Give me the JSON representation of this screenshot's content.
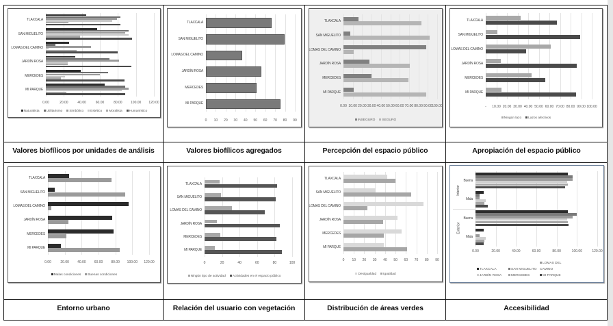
{
  "captions": {
    "c1": "Valores biofílicos por unidades de análisis",
    "c2": "Valores biofílicos agregados",
    "c3": "Percepción del espacio público",
    "c4": "Apropiación del espacio público",
    "c5": "Entorno urbano",
    "c6": "Relación del usuario con vegetación",
    "c7": "Distribución de áreas verdes",
    "c8": "Accesibilidad"
  },
  "chart_data": [
    {
      "id": "valores_biofilicos_unidades",
      "type": "bar",
      "orientation": "horizontal",
      "title": "Valores biofílicos por unidades de análisis",
      "categories": [
        "TLAXCALA",
        "SAN MIGUELITO",
        "LOMAS DEL CAMINO",
        "JARDÍN ROSA",
        "MERCEDES",
        "MI PARQUE"
      ],
      "series": [
        {
          "name": "Naturalista",
          "color": "#2b2b2b",
          "values": [
            45,
            57,
            26,
            33,
            39,
            65
          ]
        },
        {
          "name": "Utilitarismo",
          "color": "#6e6e6e",
          "values": [
            83,
            92,
            11,
            71,
            69,
            88
          ]
        },
        {
          "name": "Simbólico",
          "color": "#9a9a9a",
          "values": [
            79,
            88,
            50,
            81,
            60,
            92
          ]
        },
        {
          "name": "Estético",
          "color": "#c8c8c8",
          "values": [
            74,
            92,
            3,
            24,
            21,
            84
          ]
        },
        {
          "name": "Moralista",
          "color": "#a9a9a9",
          "values": [
            25,
            38,
            34,
            24,
            17,
            23
          ]
        },
        {
          "name": "Humanístico",
          "color": "#4a4a4a",
          "values": [
            83,
            96,
            80,
            95,
            87,
            88
          ]
        }
      ],
      "xticks": [
        "0.00",
        "20.00",
        "40.00",
        "60.00",
        "80.00",
        "100.00",
        "120.00"
      ],
      "xlim": [
        0,
        120
      ],
      "legend_position": "bottom",
      "grid": true
    },
    {
      "id": "valores_biofilicos_agregados",
      "type": "bar",
      "orientation": "horizontal",
      "title": "Valores biofílicos agregados",
      "categories": [
        "TLAXCALA",
        "SAN MIGUELITO",
        "LOMAS DEL CAMINO",
        "JARDÍN ROSA",
        "MERCEDES",
        "MI PARQUE"
      ],
      "series": [
        {
          "name": "Valor",
          "color": "#7a7a7a",
          "values": [
            65,
            78,
            35,
            55,
            50,
            74
          ]
        }
      ],
      "xticks": [
        "0",
        "10",
        "20",
        "30",
        "40",
        "50",
        "60",
        "70",
        "80",
        "90"
      ],
      "xlim": [
        0,
        90
      ],
      "grid": true
    },
    {
      "id": "percepcion_espacio_publico",
      "type": "bar",
      "orientation": "horizontal",
      "title": "Percepción del espacio público",
      "categories": [
        "TLAXCALA",
        "SAN MIGUELITO",
        "LOMAS DEL CAMINO",
        "JARDÍN ROSA",
        "MERCEDES",
        "MI PARQUE"
      ],
      "series": [
        {
          "name": "INSEGURO",
          "color": "#808080",
          "values": [
            16,
            7,
            88,
            28,
            30,
            11
          ]
        },
        {
          "name": "SEGURO",
          "color": "#b5b5b5",
          "values": [
            83,
            92,
            11,
            71,
            69,
            88
          ]
        }
      ],
      "xticks": [
        "0.00",
        "10.00",
        "20.00",
        "30.00",
        "40.00",
        "50.00",
        "60.00",
        "70.00",
        "80.00",
        "90.00",
        "100.00"
      ],
      "xlim": [
        0,
        100
      ],
      "legend_position": "bottom",
      "grid": true
    },
    {
      "id": "apropiacion_espacio_publico",
      "type": "bar",
      "orientation": "horizontal",
      "title": "Apropiación del espacio público",
      "categories": [
        "TLAXCALA",
        "SAN MIGUELITO",
        "LOMAS DEL CAMINO",
        "JARDÍN ROSA",
        "MERCEDES",
        "MI PARQUE"
      ],
      "series": [
        {
          "name": "Ningún lazo",
          "color": "#a8a8a8",
          "values": [
            33,
            11,
            61,
            14,
            43,
            15
          ]
        },
        {
          "name": "Lazos afectivos",
          "color": "#4a4a4a",
          "values": [
            67,
            89,
            38,
            86,
            56,
            85
          ]
        }
      ],
      "xticks": [
        "-",
        "10.00",
        "20.00",
        "30.00",
        "40.00",
        "50.00",
        "60.00",
        "70.00",
        "80.00",
        "90.00",
        "100.00"
      ],
      "xlim": [
        0,
        100
      ],
      "legend_position": "bottom",
      "grid": true
    },
    {
      "id": "entorno_urbano",
      "type": "bar",
      "orientation": "horizontal",
      "title": "Entorno urbano",
      "categories": [
        "TLAXCALA",
        "SAN MIGUELITO",
        "LOMAS DEL CAMINO",
        "JARDÍN ROSA",
        "MERCEDES",
        "MI PARQUE"
      ],
      "series": [
        {
          "name": "Malas condiciones",
          "color": "#2b2b2b",
          "values": [
            25,
            8,
            96,
            76,
            78,
            15
          ]
        },
        {
          "name": "Buenas condiciones",
          "color": "#9a9a9a",
          "values": [
            75,
            92,
            4,
            24,
            22,
            85
          ]
        }
      ],
      "xticks": [
        "0.00",
        "20.00",
        "40.00",
        "60.00",
        "80.00",
        "100.00",
        "120.00"
      ],
      "xlim": [
        0,
        120
      ],
      "legend_position": "bottom",
      "grid": true
    },
    {
      "id": "relacion_usuario_vegetacion",
      "type": "bar",
      "orientation": "horizontal",
      "title": "Relación del usuario con vegetación",
      "categories": [
        "TLAXCALA",
        "SAN MIGUELITO",
        "LOMAS DEL CAMINO",
        "JARDÍN ROSA",
        "MERCEDES",
        "MI PARQUE"
      ],
      "series": [
        {
          "name": "Ningún tipo de actividad",
          "color": "#a8a8a8",
          "values": [
            17,
            19,
            31,
            14,
            18,
            12
          ]
        },
        {
          "name": "Actividades en el espacio público",
          "color": "#555555",
          "values": [
            83,
            81,
            69,
            86,
            82,
            88
          ]
        }
      ],
      "xticks": [
        "0",
        "20",
        "40",
        "60",
        "80",
        "100"
      ],
      "xlim": [
        0,
        100
      ],
      "legend_position": "bottom",
      "grid": true
    },
    {
      "id": "distribucion_areas_verdes",
      "type": "bar",
      "orientation": "horizontal",
      "title": "Distribución de áreas verdes",
      "categories": [
        "TLAXCALA",
        "SAN MIGUELITO",
        "LOMAS DEL CAMINO",
        "JARDÍN ROSA",
        "MERCEDES",
        "MI PARQUE"
      ],
      "series": [
        {
          "name": "Desigualdad",
          "color": "#d9d9d9",
          "values": [
            42,
            31,
            77,
            52,
            56,
            39
          ]
        },
        {
          "name": "Igualdad",
          "color": "#a6a6a6",
          "values": [
            50,
            65,
            23,
            38,
            39,
            61
          ]
        }
      ],
      "xticks": [
        "0",
        "10",
        "20",
        "30",
        "40",
        "50",
        "60",
        "70",
        "80",
        "90"
      ],
      "xlim": [
        0,
        90
      ],
      "legend_position": "bottom",
      "grid": true
    },
    {
      "id": "accesibilidad",
      "type": "bar",
      "orientation": "horizontal",
      "title": "Accesibilidad",
      "groups": [
        "Interior",
        "Exterior"
      ],
      "categories": [
        "Buena",
        "Mala"
      ],
      "series": [
        {
          "name": "TLAXCALA",
          "color": "#2b2b2b",
          "values": {
            "Interior": {
              "Buena": 91,
              "Mala": 8
            },
            "Exterior": {
              "Buena": 91,
              "Mala": 8
            }
          }
        },
        {
          "name": "SAN MIGUELITO",
          "color": "#7a7a7a",
          "values": {
            "Interior": {
              "Buena": 96,
              "Mala": 4
            },
            "Exterior": {
              "Buena": 100,
              "Mala": 0
            }
          }
        },
        {
          "name": "LOMAS DEL CAMINO",
          "color": "#9a9a9a",
          "values": {
            "Interior": {
              "Buena": 96,
              "Mala": 4
            },
            "Exterior": {
              "Buena": 96,
              "Mala": 4
            }
          }
        },
        {
          "name": "JARDÍN ROSA",
          "color": "#d0d0d0",
          "values": {
            "Interior": {
              "Buena": 90,
              "Mala": 10
            },
            "Exterior": {
              "Buena": 90,
              "Mala": 10
            }
          }
        },
        {
          "name": "MERCEDES",
          "color": "#a6a6a6",
          "values": {
            "Interior": {
              "Buena": 91,
              "Mala": 9
            },
            "Exterior": {
              "Buena": 91,
              "Mala": 9
            }
          }
        },
        {
          "name": "MI PARQUE",
          "color": "#4a4a4a",
          "values": {
            "Interior": {
              "Buena": 88,
              "Mala": 12
            },
            "Exterior": {
              "Buena": 92,
              "Mala": 8
            }
          }
        }
      ],
      "xticks": [
        "0.00",
        "20.00",
        "40.00",
        "60.00",
        "80.00",
        "100.00",
        "120.00"
      ],
      "xlim": [
        0,
        120
      ],
      "legend_position": "bottom",
      "grid": true
    }
  ]
}
